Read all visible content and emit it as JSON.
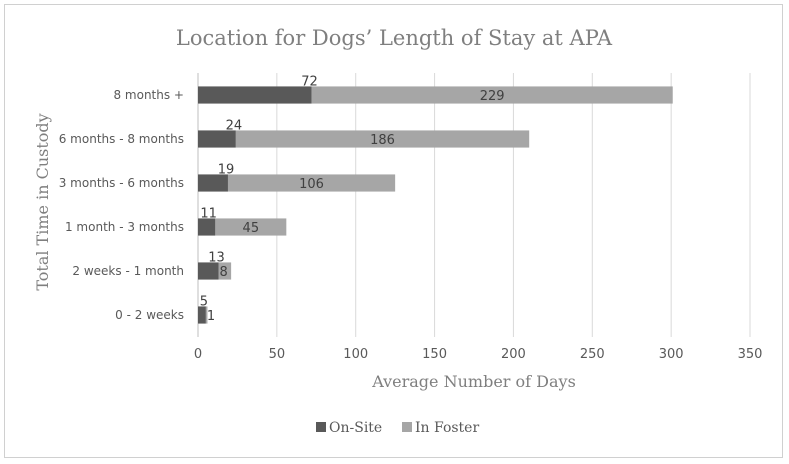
{
  "chart_data": {
    "type": "bar",
    "orientation": "horizontal",
    "stacked": true,
    "title": "Location for Dogs’ Length of Stay at APA",
    "xlabel": "Average Number of Days",
    "ylabel": "Total Time in Custody",
    "categories": [
      "8 months +",
      "6 months - 8 months",
      "3 months - 6 months",
      "1 month - 3 months",
      "2 weeks - 1 month",
      "0 - 2 weeks"
    ],
    "series": [
      {
        "name": "On-Site",
        "values": [
          72,
          24,
          19,
          11,
          13,
          5
        ],
        "color": "#595959"
      },
      {
        "name": "In Foster",
        "values": [
          229,
          186,
          106,
          45,
          8,
          1
        ],
        "color": "#a6a6a6"
      }
    ],
    "xlim": [
      0,
      350
    ],
    "xticks": [
      0,
      50,
      100,
      150,
      200,
      250,
      300,
      350
    ],
    "grid": "vertical",
    "legend": "bottom"
  }
}
